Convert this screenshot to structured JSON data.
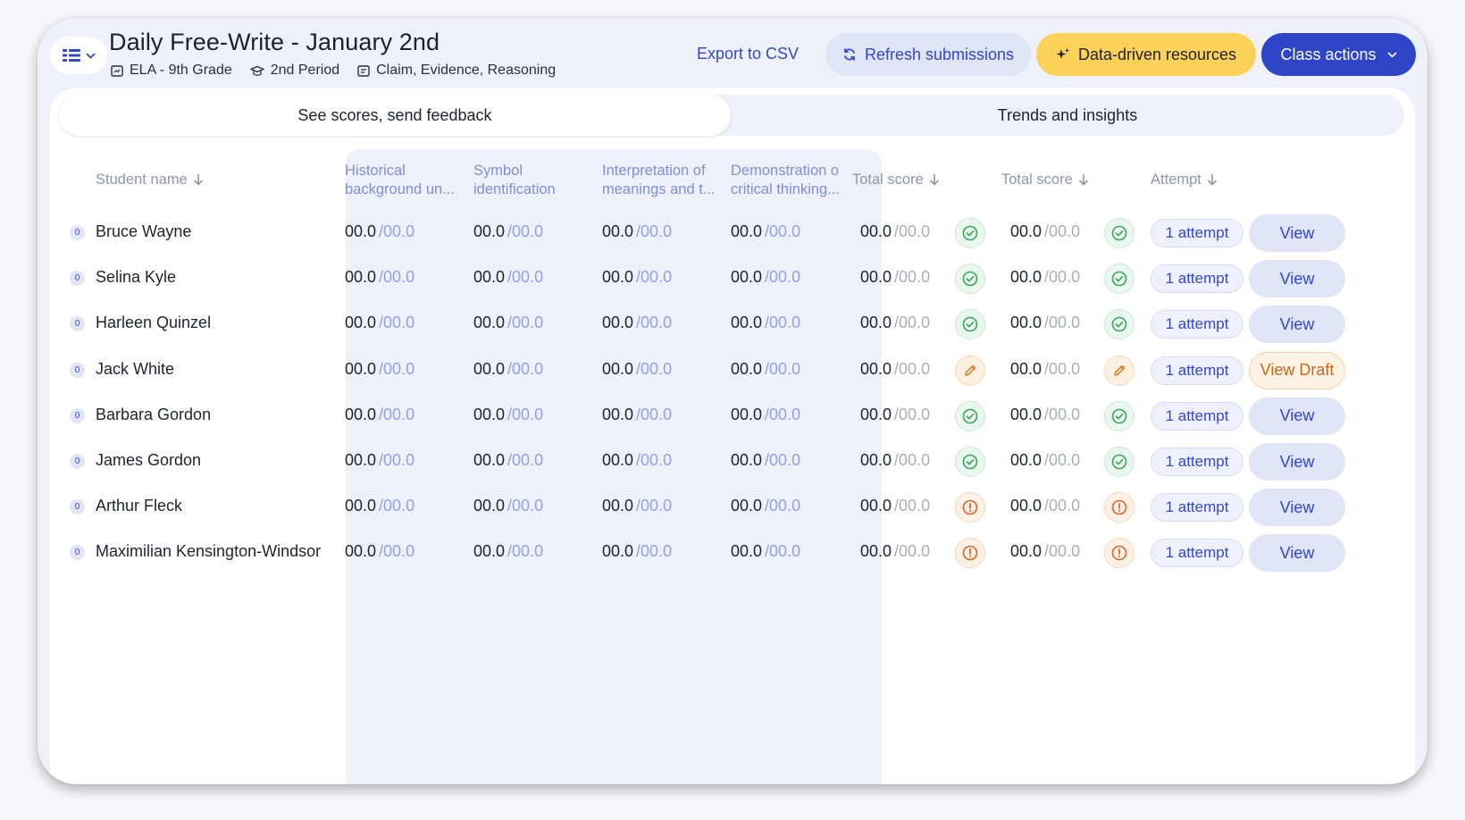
{
  "header": {
    "title": "Daily Free-Write - January 2nd",
    "subject": "ELA - 9th Grade",
    "period": "2nd Period",
    "topic": "Claim, Evidence, Reasoning",
    "export_label": "Export to CSV",
    "refresh_label": "Refresh submissions",
    "data_driven_label": "Data-driven resources",
    "class_actions_label": "Class actions"
  },
  "tabs": [
    "See scores, send feedback",
    "Trends and insights"
  ],
  "columns": {
    "student_name": "Student name",
    "criteria": [
      "Historical background un...",
      "Symbol identification",
      "Interpretation of meanings and t...",
      "Demonstration o critical thinking..."
    ],
    "total_score_1": "Total score",
    "total_score_2": "Total score",
    "attempt": "Attempt"
  },
  "rows": [
    {
      "badge": "0",
      "name": "Bruce Wayne",
      "status": "ok",
      "attempt": "1 attempt",
      "action": "View"
    },
    {
      "badge": "0",
      "name": "Selina Kyle",
      "status": "ok",
      "attempt": "1 attempt",
      "action": "View"
    },
    {
      "badge": "0",
      "name": "Harleen Quinzel",
      "status": "ok",
      "attempt": "1 attempt",
      "action": "View"
    },
    {
      "badge": "0",
      "name": "Jack White",
      "status": "draft",
      "attempt": "1 attempt",
      "action": "View Draft"
    },
    {
      "badge": "0",
      "name": "Barbara Gordon",
      "status": "ok",
      "attempt": "1 attempt",
      "action": "View"
    },
    {
      "badge": "0",
      "name": "James Gordon",
      "status": "ok",
      "attempt": "1 attempt",
      "action": "View"
    },
    {
      "badge": "0",
      "name": "Arthur Fleck",
      "status": "warn",
      "attempt": "1 attempt",
      "action": "View"
    },
    {
      "badge": "0",
      "name": "Maximilian Kensington-Windsor",
      "status": "warn",
      "attempt": "1 attempt",
      "action": "View"
    }
  ],
  "score_value": "00.0",
  "score_max": "/00.0",
  "colors": {
    "accent": "#2f45c8",
    "highlight": "#fcd157",
    "success": "#3aa55d",
    "draft": "#d9802a",
    "warning": "#d7662e"
  }
}
